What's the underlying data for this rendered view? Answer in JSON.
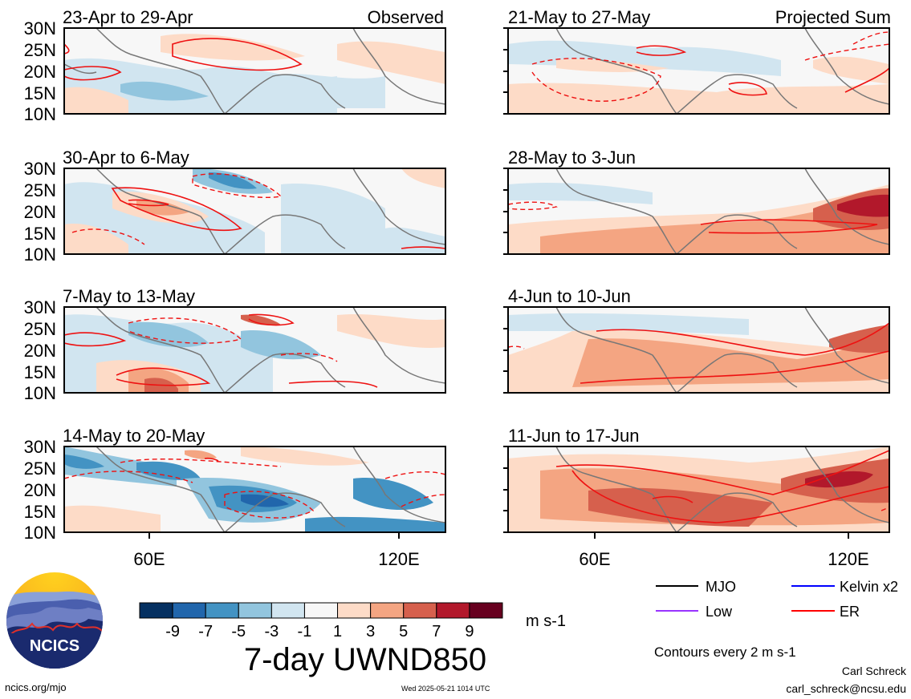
{
  "observed_label": "Observed",
  "projected_label": "Projected Sum",
  "lat_ticks": [
    "30N",
    "25N",
    "20N",
    "15N",
    "10N"
  ],
  "lon_ticks": [
    "60E",
    "120E"
  ],
  "left_panels": [
    {
      "title": "23-Apr to 29-Apr"
    },
    {
      "title": "30-Apr to 6-May"
    },
    {
      "title": "7-May to 13-May"
    },
    {
      "title": "14-May to 20-May"
    }
  ],
  "right_panels": [
    {
      "title": "21-May to 27-May"
    },
    {
      "title": "28-May to 3-Jun"
    },
    {
      "title": "4-Jun to 10-Jun"
    },
    {
      "title": "11-Jun to 17-Jun"
    }
  ],
  "colorbar": {
    "tick_labels": [
      "-9",
      "-7",
      "-5",
      "-3",
      "-1",
      "1",
      "3",
      "5",
      "7",
      "9"
    ],
    "colors": [
      "#053061",
      "#2166ac",
      "#4393c3",
      "#92c5de",
      "#d1e5f0",
      "#f7f7f7",
      "#fddbc7",
      "#f4a582",
      "#d6604d",
      "#b2182b",
      "#67001f"
    ],
    "unit": "m s-1"
  },
  "main_title": "7-day UWND850",
  "legend": {
    "items": [
      {
        "label": "MJO",
        "color": "#000000"
      },
      {
        "label": "Kelvin x2",
        "color": "#0000ff"
      },
      {
        "label": "Low",
        "color": "#9933ff"
      },
      {
        "label": "ER",
        "color": "#ff0000"
      }
    ],
    "contour_note": "Contours every 2 m s-1"
  },
  "logo": {
    "text": "NCICS"
  },
  "footer": {
    "website": "ncics.org/mjo",
    "timestamp": "Wed 2025-05-21 1014 UTC",
    "author": "Carl Schreck",
    "email": "carl_schreck@ncsu.edu"
  }
}
